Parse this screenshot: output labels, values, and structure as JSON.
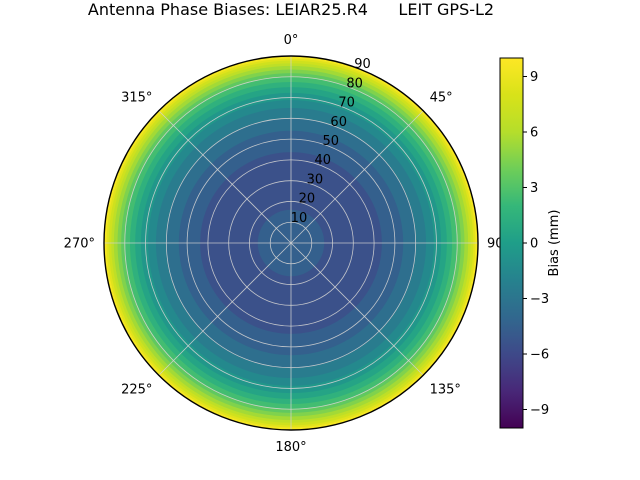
{
  "chart_data": {
    "type": "heatmap",
    "projection": "polar",
    "title": "Antenna Phase Biases: LEIAR25.R4      LEIT GPS-L2",
    "angular_ticks": [
      {
        "deg": 0,
        "label": "0°"
      },
      {
        "deg": 45,
        "label": "45°"
      },
      {
        "deg": 90,
        "label": "90"
      },
      {
        "deg": 135,
        "label": "135°"
      },
      {
        "deg": 180,
        "label": "180°"
      },
      {
        "deg": 225,
        "label": "225°"
      },
      {
        "deg": 270,
        "label": "270°"
      },
      {
        "deg": 315,
        "label": "315°"
      }
    ],
    "radial_ticks": [
      10,
      20,
      30,
      40,
      50,
      60,
      70,
      80,
      90
    ],
    "radial_range": [
      0,
      90
    ],
    "radial_label_angle_deg": 22.5,
    "radial_profile": {
      "r": [
        0,
        10,
        18,
        28,
        38,
        46,
        52,
        58,
        63,
        68,
        72,
        76,
        79,
        82,
        85,
        87,
        89,
        90
      ],
      "bias_mm": [
        -4.4,
        -4.7,
        -5.1,
        -5.4,
        -5.3,
        -4.9,
        -4.3,
        -3.5,
        -2.5,
        -1.3,
        -0.1,
        1.3,
        2.5,
        4.0,
        5.8,
        7.2,
        9.0,
        9.7
      ]
    },
    "contour_step_mm": 1,
    "colorbar": {
      "label": "Bias (mm)",
      "ticks": [
        9,
        6,
        3,
        0,
        -3,
        -6,
        -9
      ],
      "tick_labels": [
        "9",
        "6",
        "3",
        "0",
        "−3",
        "−6",
        "−9"
      ],
      "vmin": -10,
      "vmax": 10,
      "colormap": "viridis",
      "colormap_stops": [
        "#440154",
        "#482878",
        "#3e4989",
        "#31688e",
        "#26828e",
        "#1f9e89",
        "#35b779",
        "#6ece58",
        "#b5de2b",
        "#d8e219",
        "#fde725"
      ]
    },
    "grid_color": "#d2d2d2",
    "outline_color": "#000000",
    "text_color": "#000000",
    "background": "#ffffff"
  }
}
